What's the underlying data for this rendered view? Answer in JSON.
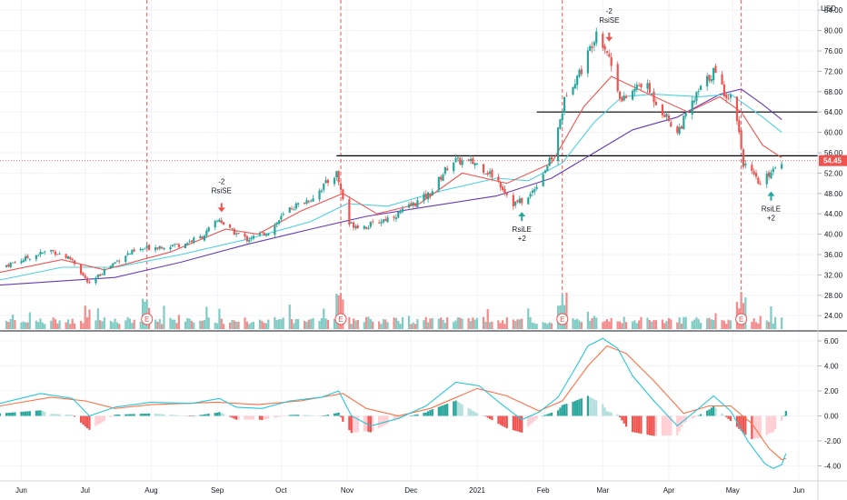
{
  "currency": "USD",
  "last_price_label": "54.45",
  "colors": {
    "up": "#26a69a",
    "down": "#ef5350",
    "volume_up": "#80cbc4",
    "volume_down": "#f28b8b",
    "ema_fast": "#ef5350",
    "ema_mid": "#4dd0e1",
    "sma_slow": "#673ab7",
    "macd": "#26c6da",
    "signal": "#ff7043",
    "hist_up_strong": "#26a69a",
    "hist_up_weak": "#b2dfdb",
    "hist_down_strong": "#ef5350",
    "hist_down_weak": "#ffcdd2",
    "earnings_line": "#ef5350",
    "resistance": "#000000"
  },
  "chart_data": {
    "type": "candlestick",
    "x_axis": {
      "ticks": [
        "Jun",
        "Jul",
        "Aug",
        "Sep",
        "Oct",
        "Nov",
        "Dec",
        "2021",
        "Feb",
        "Mar",
        "Apr",
        "May",
        "Jun"
      ],
      "range": [
        "2020-05-22",
        "2021-06-10"
      ]
    },
    "price_axis": {
      "ticks": [
        "24.00",
        "28.00",
        "32.00",
        "36.00",
        "40.00",
        "44.00",
        "48.00",
        "52.00",
        "56.00",
        "60.00",
        "64.00",
        "68.00",
        "72.00",
        "76.00",
        "80.00",
        "84.00"
      ],
      "range": [
        21,
        86
      ]
    },
    "macd_axis": {
      "ticks": [
        "6.00",
        "4.00",
        "2.00",
        "0.00",
        "-2.00",
        "-4.00"
      ],
      "range": [
        -5.2,
        6.8
      ]
    },
    "price_path": [
      [
        "2020-05-22",
        33.5
      ],
      [
        "2020-06-05",
        35.5
      ],
      [
        "2020-06-15",
        36.8
      ],
      [
        "2020-06-25",
        35.0
      ],
      [
        "2020-07-03",
        30.0
      ],
      [
        "2020-07-10",
        33.0
      ],
      [
        "2020-07-20",
        36.0
      ],
      [
        "2020-08-01",
        37.5
      ],
      [
        "2020-08-15",
        38.0
      ],
      [
        "2020-08-25",
        39.5
      ],
      [
        "2020-09-02",
        43.0
      ],
      [
        "2020-09-06",
        41.0
      ],
      [
        "2020-09-15",
        39.0
      ],
      [
        "2020-09-25",
        40.5
      ],
      [
        "2020-10-05",
        45.0
      ],
      [
        "2020-10-15",
        47.0
      ],
      [
        "2020-10-27",
        52.0
      ],
      [
        "2020-11-02",
        42.0
      ],
      [
        "2020-11-10",
        41.5
      ],
      [
        "2020-11-25",
        44.0
      ],
      [
        "2020-12-10",
        48.0
      ],
      [
        "2020-12-20",
        54.5
      ],
      [
        "2020-12-31",
        54.0
      ],
      [
        "2021-01-10",
        51.0
      ],
      [
        "2021-01-18",
        46.0
      ],
      [
        "2021-01-25",
        47.0
      ],
      [
        "2021-02-05",
        55.0
      ],
      [
        "2021-02-12",
        68.0
      ],
      [
        "2021-02-20",
        73.0
      ],
      [
        "2021-02-26",
        80.0
      ],
      [
        "2021-03-03",
        76.0
      ],
      [
        "2021-03-10",
        66.0
      ],
      [
        "2021-03-20",
        70.0
      ],
      [
        "2021-03-26",
        66.0
      ],
      [
        "2021-04-05",
        60.0
      ],
      [
        "2021-04-15",
        68.0
      ],
      [
        "2021-04-22",
        72.0
      ],
      [
        "2021-04-27",
        68.0
      ],
      [
        "2021-05-02",
        66.0
      ],
      [
        "2021-05-06",
        54.0
      ],
      [
        "2021-05-14",
        49.5
      ],
      [
        "2021-05-20",
        53.0
      ],
      [
        "2021-05-24",
        54.45
      ]
    ],
    "ema_fast": [
      [
        "2020-05-22",
        32.5
      ],
      [
        "2020-06-20",
        35.0
      ],
      [
        "2020-07-10",
        33.0
      ],
      [
        "2020-08-10",
        36.5
      ],
      [
        "2020-09-05",
        41.0
      ],
      [
        "2020-09-20",
        40.0
      ],
      [
        "2020-10-10",
        44.5
      ],
      [
        "2020-10-30",
        48.0
      ],
      [
        "2020-11-15",
        44.0
      ],
      [
        "2020-12-05",
        46.0
      ],
      [
        "2020-12-25",
        52.0
      ],
      [
        "2021-01-15",
        50.0
      ],
      [
        "2021-02-05",
        54.0
      ],
      [
        "2021-02-20",
        65.0
      ],
      [
        "2021-03-05",
        71.0
      ],
      [
        "2021-03-20",
        68.0
      ],
      [
        "2021-04-10",
        64.0
      ],
      [
        "2021-04-25",
        67.0
      ],
      [
        "2021-05-05",
        64.0
      ],
      [
        "2021-05-15",
        57.5
      ],
      [
        "2021-05-24",
        55.0
      ]
    ],
    "ema_mid": [
      [
        "2020-05-22",
        31.0
      ],
      [
        "2020-06-20",
        33.5
      ],
      [
        "2020-07-15",
        33.5
      ],
      [
        "2020-08-15",
        36.0
      ],
      [
        "2020-09-15",
        39.0
      ],
      [
        "2020-10-15",
        42.5
      ],
      [
        "2020-11-01",
        46.0
      ],
      [
        "2020-11-20",
        45.5
      ],
      [
        "2020-12-15",
        48.5
      ],
      [
        "2021-01-10",
        51.0
      ],
      [
        "2021-01-25",
        50.5
      ],
      [
        "2021-02-10",
        54.0
      ],
      [
        "2021-02-25",
        62.0
      ],
      [
        "2021-03-10",
        67.0
      ],
      [
        "2021-03-25",
        67.5
      ],
      [
        "2021-04-15",
        67.0
      ],
      [
        "2021-04-30",
        67.5
      ],
      [
        "2021-05-15",
        63.0
      ],
      [
        "2021-05-24",
        60.0
      ]
    ],
    "sma_slow": [
      [
        "2020-05-22",
        30.0
      ],
      [
        "2020-07-15",
        31.5
      ],
      [
        "2020-08-15",
        34.5
      ],
      [
        "2020-09-15",
        38.0
      ],
      [
        "2020-10-15",
        41.0
      ],
      [
        "2020-11-10",
        43.5
      ],
      [
        "2020-12-10",
        45.5
      ],
      [
        "2021-01-10",
        47.5
      ],
      [
        "2021-02-05",
        51.0
      ],
      [
        "2021-02-25",
        56.0
      ],
      [
        "2021-03-15",
        60.5
      ],
      [
        "2021-04-05",
        63.0
      ],
      [
        "2021-04-25",
        67.5
      ],
      [
        "2021-05-05",
        68.5
      ],
      [
        "2021-05-15",
        65.5
      ],
      [
        "2021-05-24",
        62.5
      ]
    ],
    "macd": [
      [
        "2020-05-22",
        1.0
      ],
      [
        "2020-06-10",
        1.8
      ],
      [
        "2020-06-25",
        1.4
      ],
      [
        "2020-07-03",
        0.0
      ],
      [
        "2020-07-15",
        0.7
      ],
      [
        "2020-08-01",
        1.1
      ],
      [
        "2020-08-20",
        1.0
      ],
      [
        "2020-09-02",
        1.4
      ],
      [
        "2020-09-10",
        0.7
      ],
      [
        "2020-09-22",
        0.6
      ],
      [
        "2020-10-05",
        1.2
      ],
      [
        "2020-10-20",
        1.5
      ],
      [
        "2020-10-28",
        2.0
      ],
      [
        "2020-11-03",
        0.0
      ],
      [
        "2020-11-12",
        -0.8
      ],
      [
        "2020-11-25",
        -0.2
      ],
      [
        "2020-12-08",
        0.8
      ],
      [
        "2020-12-22",
        2.7
      ],
      [
        "2021-01-02",
        2.4
      ],
      [
        "2021-01-12",
        1.0
      ],
      [
        "2021-01-22",
        -0.3
      ],
      [
        "2021-01-30",
        0.3
      ],
      [
        "2021-02-08",
        1.5
      ],
      [
        "2021-02-15",
        3.5
      ],
      [
        "2021-02-22",
        5.6
      ],
      [
        "2021-03-01",
        6.2
      ],
      [
        "2021-03-08",
        5.4
      ],
      [
        "2021-03-15",
        3.2
      ],
      [
        "2021-03-25",
        1.2
      ],
      [
        "2021-04-05",
        -0.8
      ],
      [
        "2021-04-15",
        0.6
      ],
      [
        "2021-04-22",
        1.6
      ],
      [
        "2021-04-30",
        0.4
      ],
      [
        "2021-05-08",
        -2.0
      ],
      [
        "2021-05-16",
        -3.8
      ],
      [
        "2021-05-20",
        -4.2
      ],
      [
        "2021-05-24",
        -3.9
      ],
      [
        "2021-05-26",
        -3.0
      ]
    ],
    "signal": [
      [
        "2020-05-22",
        0.8
      ],
      [
        "2020-06-15",
        1.5
      ],
      [
        "2020-07-01",
        1.2
      ],
      [
        "2020-07-15",
        0.6
      ],
      [
        "2020-08-01",
        0.9
      ],
      [
        "2020-09-01",
        1.1
      ],
      [
        "2020-09-20",
        0.9
      ],
      [
        "2020-10-10",
        1.2
      ],
      [
        "2020-10-30",
        1.8
      ],
      [
        "2020-11-10",
        0.6
      ],
      [
        "2020-11-25",
        0.0
      ],
      [
        "2020-12-10",
        0.6
      ],
      [
        "2021-01-01",
        2.2
      ],
      [
        "2021-01-15",
        1.6
      ],
      [
        "2021-01-30",
        0.4
      ],
      [
        "2021-02-10",
        1.2
      ],
      [
        "2021-02-22",
        4.0
      ],
      [
        "2021-03-03",
        5.6
      ],
      [
        "2021-03-12",
        5.0
      ],
      [
        "2021-03-25",
        2.8
      ],
      [
        "2021-04-08",
        0.2
      ],
      [
        "2021-04-20",
        0.8
      ],
      [
        "2021-04-30",
        0.8
      ],
      [
        "2021-05-10",
        -0.6
      ],
      [
        "2021-05-18",
        -2.6
      ],
      [
        "2021-05-24",
        -3.5
      ],
      [
        "2021-05-26",
        -3.4
      ]
    ],
    "earnings_dates": [
      "2020-07-30",
      "2020-10-29",
      "2021-02-10",
      "2021-05-05"
    ],
    "earnings_label": "E",
    "resistance_lines": [
      {
        "from": "2020-10-27",
        "to": "2021-06-10",
        "value": 55.4
      },
      {
        "from": "2021-01-29",
        "to": "2021-06-10",
        "value": 64.0
      }
    ],
    "signals": [
      {
        "type": "short",
        "date": "2020-09-03",
        "price": 44.5,
        "labels": [
          "-2",
          "RsiSE"
        ]
      },
      {
        "type": "long",
        "date": "2021-01-22",
        "price": 44.2,
        "labels": [
          "RsiLE",
          "+2"
        ]
      },
      {
        "type": "short",
        "date": "2021-03-04",
        "price": 78.0,
        "labels": [
          "-2",
          "RsiSE"
        ]
      },
      {
        "type": "long",
        "date": "2021-05-19",
        "price": 48.2,
        "labels": [
          "RsiLE",
          "+2"
        ]
      }
    ],
    "last_price": 54.45
  }
}
